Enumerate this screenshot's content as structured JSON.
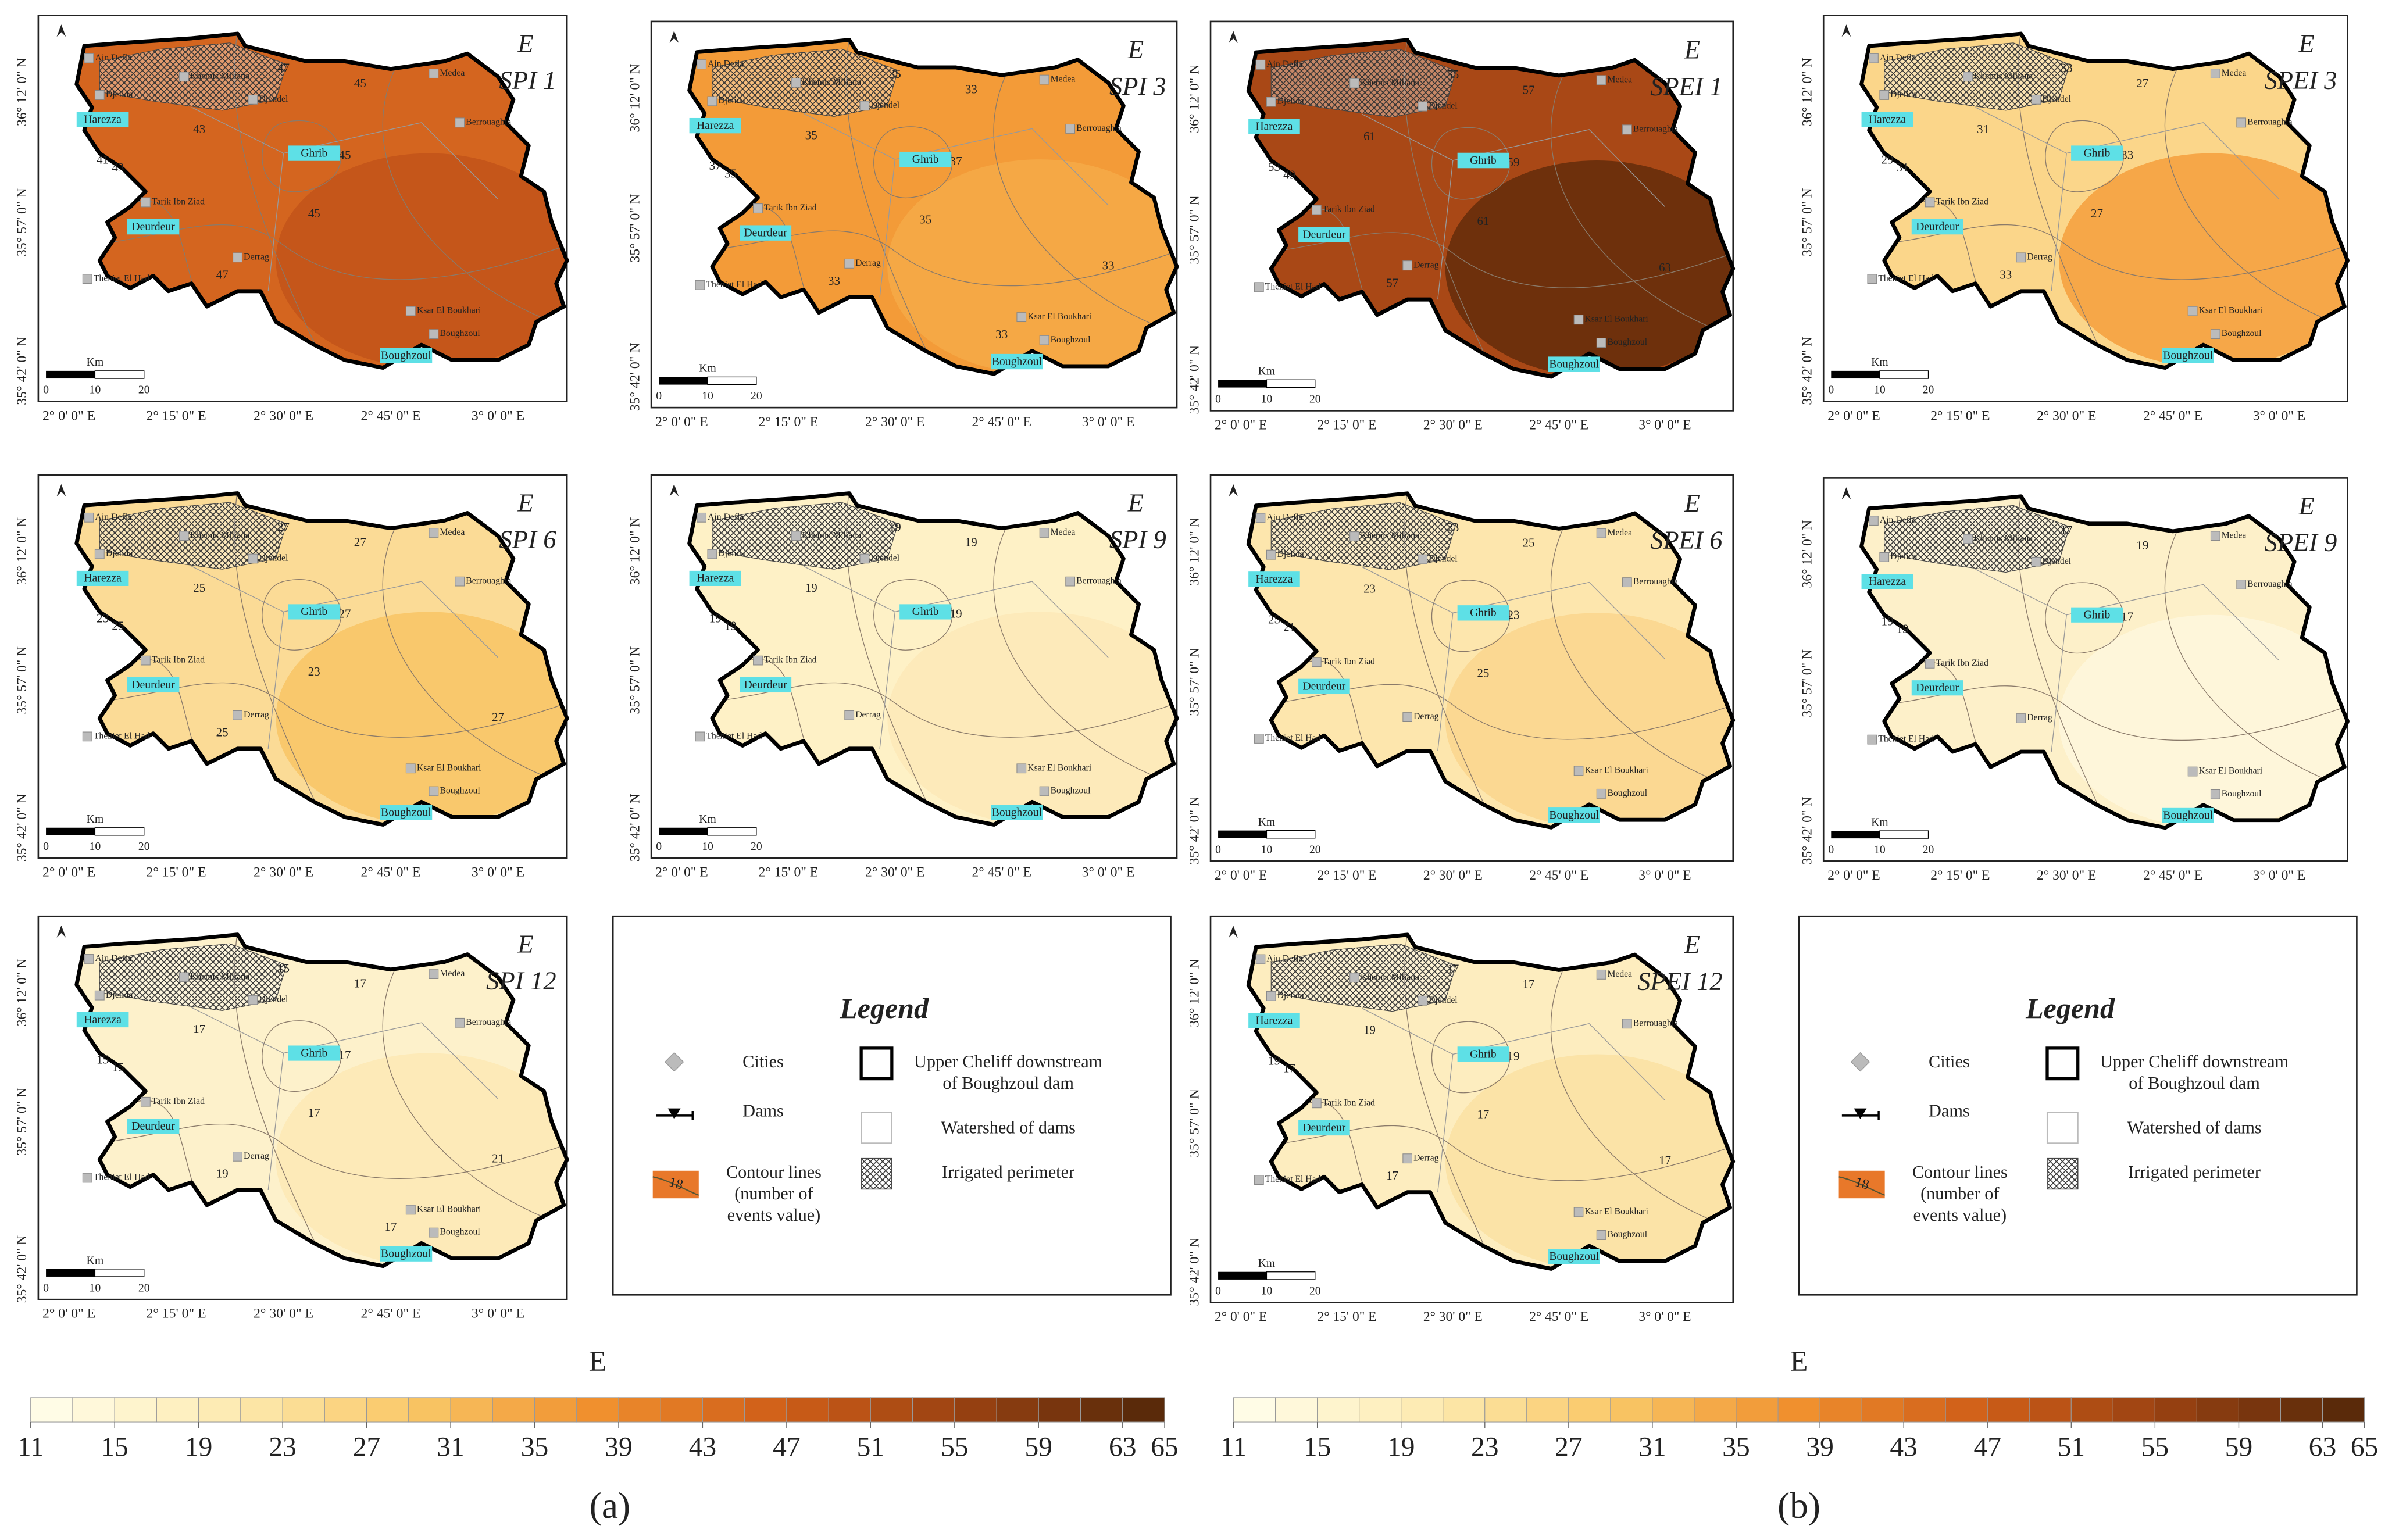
{
  "maps": [
    {
      "letter": "E",
      "index": "SPI 1",
      "colors": [
        "#d4651f",
        "#c5561a"
      ],
      "contours": [
        47,
        45,
        41,
        43,
        45,
        43,
        45,
        41,
        47
      ]
    },
    {
      "letter": "E",
      "index": "SPI 3",
      "colors": [
        "#f39b38",
        "#f5a845"
      ],
      "contours": [
        35,
        33,
        37,
        35,
        37,
        35,
        35,
        35,
        33,
        33,
        33
      ]
    },
    {
      "letter": "E",
      "index": "SPEI 1",
      "colors": [
        "#a94816",
        "#6e300c"
      ],
      "contours": [
        55,
        57,
        53,
        49,
        59,
        61,
        61,
        51,
        57,
        63
      ]
    },
    {
      "letter": "E",
      "index": "SPEI 3",
      "colors": [
        "#fbd68a",
        "#f6a748"
      ],
      "contours": [
        33,
        27,
        29,
        31,
        33,
        31,
        27,
        33,
        33
      ]
    },
    {
      "letter": "E",
      "index": "SPI 6",
      "colors": [
        "#fbdb96",
        "#f9c86c"
      ],
      "contours": [
        27,
        27,
        23,
        25,
        27,
        25,
        23,
        23,
        25,
        27
      ]
    },
    {
      "letter": "E",
      "index": "SPI 9",
      "colors": [
        "#fef1c6",
        "#fdeaba"
      ],
      "contours": [
        19,
        19,
        19,
        19,
        19,
        19
      ]
    },
    {
      "letter": "E",
      "index": "SPEI 6",
      "colors": [
        "#fde6ad",
        "#fbd892"
      ],
      "contours": [
        23,
        25,
        25,
        21,
        23,
        23,
        25,
        23
      ]
    },
    {
      "letter": "E",
      "index": "SPEI 9",
      "colors": [
        "#fdf0c9",
        "#fef6da"
      ],
      "contours": [
        17,
        19,
        19,
        19,
        17
      ]
    },
    {
      "letter": "E",
      "index": "SPI 12",
      "colors": [
        "#fdf1cb",
        "#fdeab8"
      ],
      "contours": [
        15,
        17,
        15,
        15,
        17,
        17,
        17,
        15,
        19,
        21,
        17
      ]
    },
    {
      "letter": "E",
      "index": "SPEI 12",
      "colors": [
        "#fdedbf",
        "#fbe3a7"
      ],
      "contours": [
        17,
        17,
        19,
        17,
        19,
        19,
        17,
        15,
        17,
        17
      ]
    }
  ],
  "cities": [
    "Ain Defla",
    "Khemis Miliana",
    "Djelida",
    "Djendel",
    "Medea",
    "Berrouaghia",
    "Tarik Ibn Ziad",
    "Derrag",
    "Theniet El Had",
    "Ksar El Boukhari",
    "Boughzoul"
  ],
  "dams": [
    "Harezza",
    "Ghrib",
    "Deurdeur",
    "Boughzoul"
  ],
  "longitudes": [
    "2° 0' 0\" E",
    "2° 15' 0\" E",
    "2° 30' 0\" E",
    "2° 45' 0\" E",
    "3° 0' 0\" E"
  ],
  "latitudes": [
    "36° 12' 0\" N",
    "35° 57' 0\" N",
    "35° 42' 0\" N"
  ],
  "scale_bar": {
    "unit": "Km",
    "labels": [
      "0",
      "10",
      "20"
    ]
  },
  "legend": {
    "title": "Legend",
    "cities": "Cities",
    "dams": "Dams",
    "contour_sample": "18",
    "contour_lines": [
      "Contour lines",
      "(number of",
      "events value)"
    ],
    "boundary": [
      "Upper Cheliff downstream",
      "of Boughzoul dam"
    ],
    "watershed": "Watershed of dams",
    "irrigated": "Irrigated perimeter"
  },
  "colorbar": {
    "title": "E",
    "lim": [
      11,
      65
    ],
    "ticks": [
      11,
      15,
      19,
      23,
      27,
      31,
      35,
      39,
      43,
      47,
      51,
      55,
      59,
      63,
      65
    ],
    "colors": [
      "#fffce6",
      "#fdeab0",
      "#f9c766",
      "#f0902e",
      "#cf5e18",
      "#9a4212",
      "#5a2a0a"
    ]
  },
  "panels": [
    "(a)",
    "(b)"
  ]
}
